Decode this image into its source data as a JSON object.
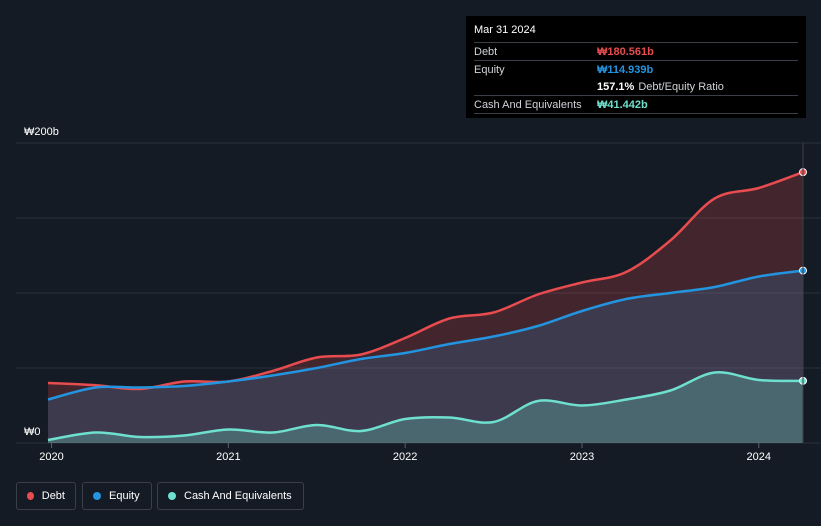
{
  "chart_data": {
    "type": "area",
    "title": "",
    "xlabel": "",
    "ylabel": "",
    "ylim": [
      0,
      200
    ],
    "xlim": [
      2019.98,
      2024.25
    ],
    "y_top_label": "₩200b",
    "y_bottom_label": "₩0",
    "x_ticks": [
      2020,
      2021,
      2022,
      2023,
      2024
    ],
    "x_tick_labels": [
      "2020",
      "2021",
      "2022",
      "2023",
      "2024"
    ],
    "grid": true,
    "legend_position": "bottom-left",
    "series": [
      {
        "name": "Debt",
        "color": "#e84c4f",
        "x": [
          2019.98,
          2020.25,
          2020.5,
          2020.75,
          2021.0,
          2021.25,
          2021.5,
          2021.75,
          2022.0,
          2022.25,
          2022.5,
          2022.75,
          2023.0,
          2023.25,
          2023.5,
          2023.75,
          2024.0,
          2024.25
        ],
        "values": [
          40,
          38.5,
          36,
          41,
          41,
          48,
          57,
          59,
          70,
          83,
          87,
          99,
          107,
          114,
          135,
          163,
          170,
          180.561
        ]
      },
      {
        "name": "Equity",
        "color": "#2394df",
        "x": [
          2019.98,
          2020.25,
          2020.5,
          2020.75,
          2021.0,
          2021.25,
          2021.5,
          2021.75,
          2022.0,
          2022.25,
          2022.5,
          2022.75,
          2023.0,
          2023.25,
          2023.5,
          2023.75,
          2024.0,
          2024.25
        ],
        "values": [
          29,
          37,
          37,
          38,
          41,
          45,
          50,
          56,
          60,
          66,
          71,
          78,
          88,
          96,
          100,
          104,
          111,
          114.939
        ]
      },
      {
        "name": "Cash And Equivalents",
        "color": "#6fe0cd",
        "x": [
          2019.98,
          2020.25,
          2020.5,
          2020.75,
          2021.0,
          2021.25,
          2021.5,
          2021.75,
          2022.0,
          2022.25,
          2022.5,
          2022.75,
          2023.0,
          2023.25,
          2023.5,
          2023.75,
          2024.0,
          2024.25
        ],
        "values": [
          2,
          7,
          4,
          5,
          9,
          7,
          12,
          8,
          16,
          17,
          14,
          28,
          25,
          29,
          35,
          47,
          42,
          41.442
        ]
      }
    ]
  },
  "tooltip": {
    "date": "Mar 31 2024",
    "rows": [
      {
        "label": "Debt",
        "value": "₩180.561b",
        "color": "#e84c4f"
      },
      {
        "label": "Equity",
        "value": "₩114.939b",
        "color": "#2394df"
      },
      {
        "label": "",
        "value": "157.1%",
        "suffix": "Debt/Equity Ratio",
        "color": "#ffffff"
      },
      {
        "label": "Cash And Equivalents",
        "value": "₩41.442b",
        "color": "#6fe0cd"
      }
    ]
  },
  "legend": [
    {
      "label": "Debt",
      "color": "#e84c4f"
    },
    {
      "label": "Equity",
      "color": "#2394df"
    },
    {
      "label": "Cash And Equivalents",
      "color": "#6fe0cd"
    }
  ]
}
